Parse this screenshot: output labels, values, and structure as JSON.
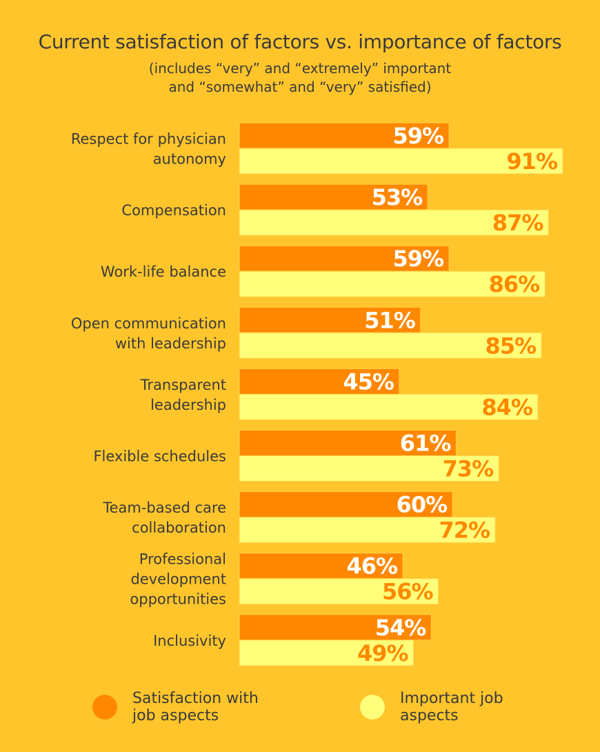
{
  "chart_data": {
    "type": "bar",
    "orientation": "horizontal",
    "title": "Current satisfaction of factors vs. importance of factors",
    "subtitle_lines": [
      "(includes “very” and “extremely” important",
      "and “somewhat” and “very” satisfied)"
    ],
    "categories": [
      [
        "Respect for physician",
        "autonomy"
      ],
      [
        "Compensation"
      ],
      [
        "Work-life balance"
      ],
      [
        "Open communication",
        "with leadership"
      ],
      [
        "Transparent",
        "leadership"
      ],
      [
        "Flexible schedules"
      ],
      [
        "Team-based care",
        "collaboration"
      ],
      [
        "Professional",
        "development",
        "opportunities"
      ],
      [
        "Inclusivity"
      ]
    ],
    "series": [
      {
        "name": "Satisfaction with job aspects",
        "legend_lines": [
          "Satisfaction with",
          "job aspects"
        ],
        "color": "#FF8800",
        "label_color": "#FFFFFF",
        "values": [
          59,
          53,
          59,
          51,
          45,
          61,
          60,
          46,
          54
        ]
      },
      {
        "name": "Important job aspects",
        "legend_lines": [
          "Important job",
          "aspects"
        ],
        "color": "#FFFF7A",
        "label_color": "#FF8800",
        "values": [
          91,
          87,
          86,
          85,
          84,
          73,
          72,
          56,
          49
        ]
      }
    ],
    "value_suffix": "%",
    "xlim": [
      0,
      100
    ],
    "grid": false,
    "axes_visible": false,
    "legend_position": "bottom",
    "background": "#FFC52B"
  }
}
